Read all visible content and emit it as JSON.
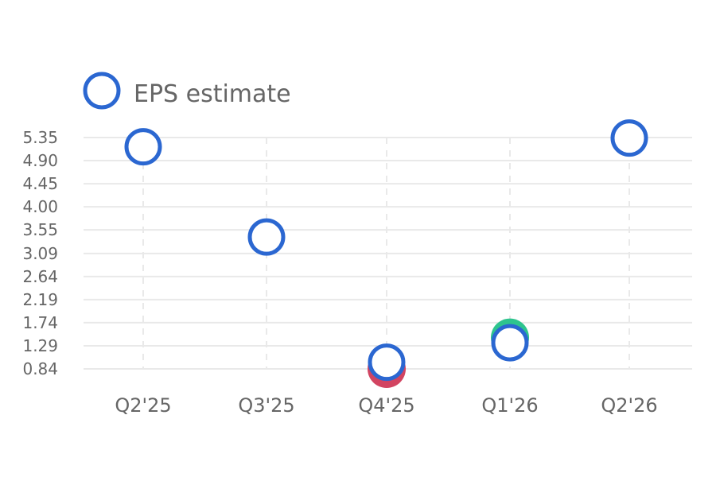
{
  "chart_data": {
    "type": "scatter",
    "categories": [
      "Q2'25",
      "Q3'25",
      "Q4'25",
      "Q1'26",
      "Q2'26"
    ],
    "y_ticks": [
      "0.84",
      "1.29",
      "1.74",
      "2.19",
      "2.64",
      "3.09",
      "3.55",
      "4.00",
      "4.45",
      "4.90",
      "5.35"
    ],
    "ylim": [
      0.84,
      5.35
    ],
    "grid": true,
    "legend_position": "top-left",
    "series": [
      {
        "name": "EPS estimate",
        "values": [
          5.17,
          3.41,
          0.97,
          1.35,
          5.34
        ],
        "color": "#2b67d1",
        "marker": "hollow-circle"
      }
    ],
    "actual_markers": [
      {
        "category": "Q4'25",
        "value": 0.84,
        "color": "#d24461",
        "status": "miss"
      },
      {
        "category": "Q1'26",
        "value": 1.45,
        "color": "#2ec48e",
        "status": "beat"
      }
    ]
  }
}
